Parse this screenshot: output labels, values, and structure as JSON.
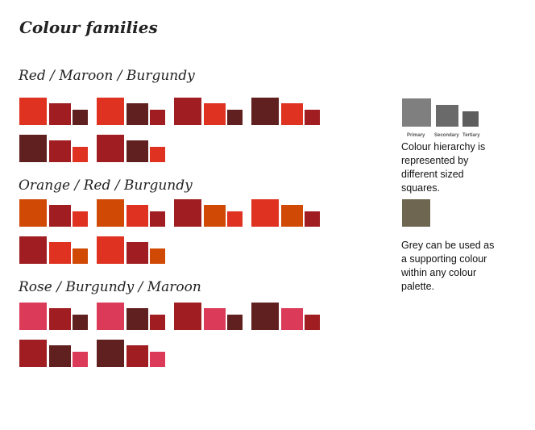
{
  "title": "Colour families",
  "colors": {
    "red": "#E03220",
    "burgundy": "#A01E22",
    "maroon": "#612020",
    "orange": "#D04A06",
    "rose": "#DB3A58",
    "grey_primary": "#7F7F7F",
    "grey_secondary": "#6A6A6A",
    "grey_tertiary": "#5E5E5E",
    "warm_grey": "#6E6650"
  },
  "sections": [
    {
      "title": "Red / Maroon / Burgundy",
      "groups": [
        [
          "red",
          "burgundy",
          "maroon"
        ],
        [
          "red",
          "maroon",
          "burgundy"
        ],
        [
          "burgundy",
          "red",
          "maroon"
        ],
        [
          "maroon",
          "red",
          "burgundy"
        ],
        [
          "maroon",
          "burgundy",
          "red"
        ],
        [
          "burgundy",
          "maroon",
          "red"
        ]
      ]
    },
    {
      "title": "Orange / Red / Burgundy",
      "groups": [
        [
          "orange",
          "burgundy",
          "red"
        ],
        [
          "orange",
          "red",
          "burgundy"
        ],
        [
          "burgundy",
          "orange",
          "red"
        ],
        [
          "red",
          "orange",
          "burgundy"
        ],
        [
          "burgundy",
          "red",
          "orange"
        ],
        [
          "red",
          "burgundy",
          "orange"
        ]
      ]
    },
    {
      "title": "Rose / Burgundy / Maroon",
      "groups": [
        [
          "rose",
          "burgundy",
          "maroon"
        ],
        [
          "rose",
          "maroon",
          "burgundy"
        ],
        [
          "burgundy",
          "rose",
          "maroon"
        ],
        [
          "maroon",
          "rose",
          "burgundy"
        ],
        [
          "burgundy",
          "maroon",
          "rose"
        ],
        [
          "maroon",
          "burgundy",
          "rose"
        ]
      ]
    }
  ],
  "legend": {
    "primary_label": "Primary",
    "secondary_label": "Secondary",
    "tertiary_label": "Tertiary",
    "hierarchy_note": "Colour hierarchy is represented by different sized squares.",
    "grey_note": "Grey can be used as a supporting colour within any colour palette."
  }
}
